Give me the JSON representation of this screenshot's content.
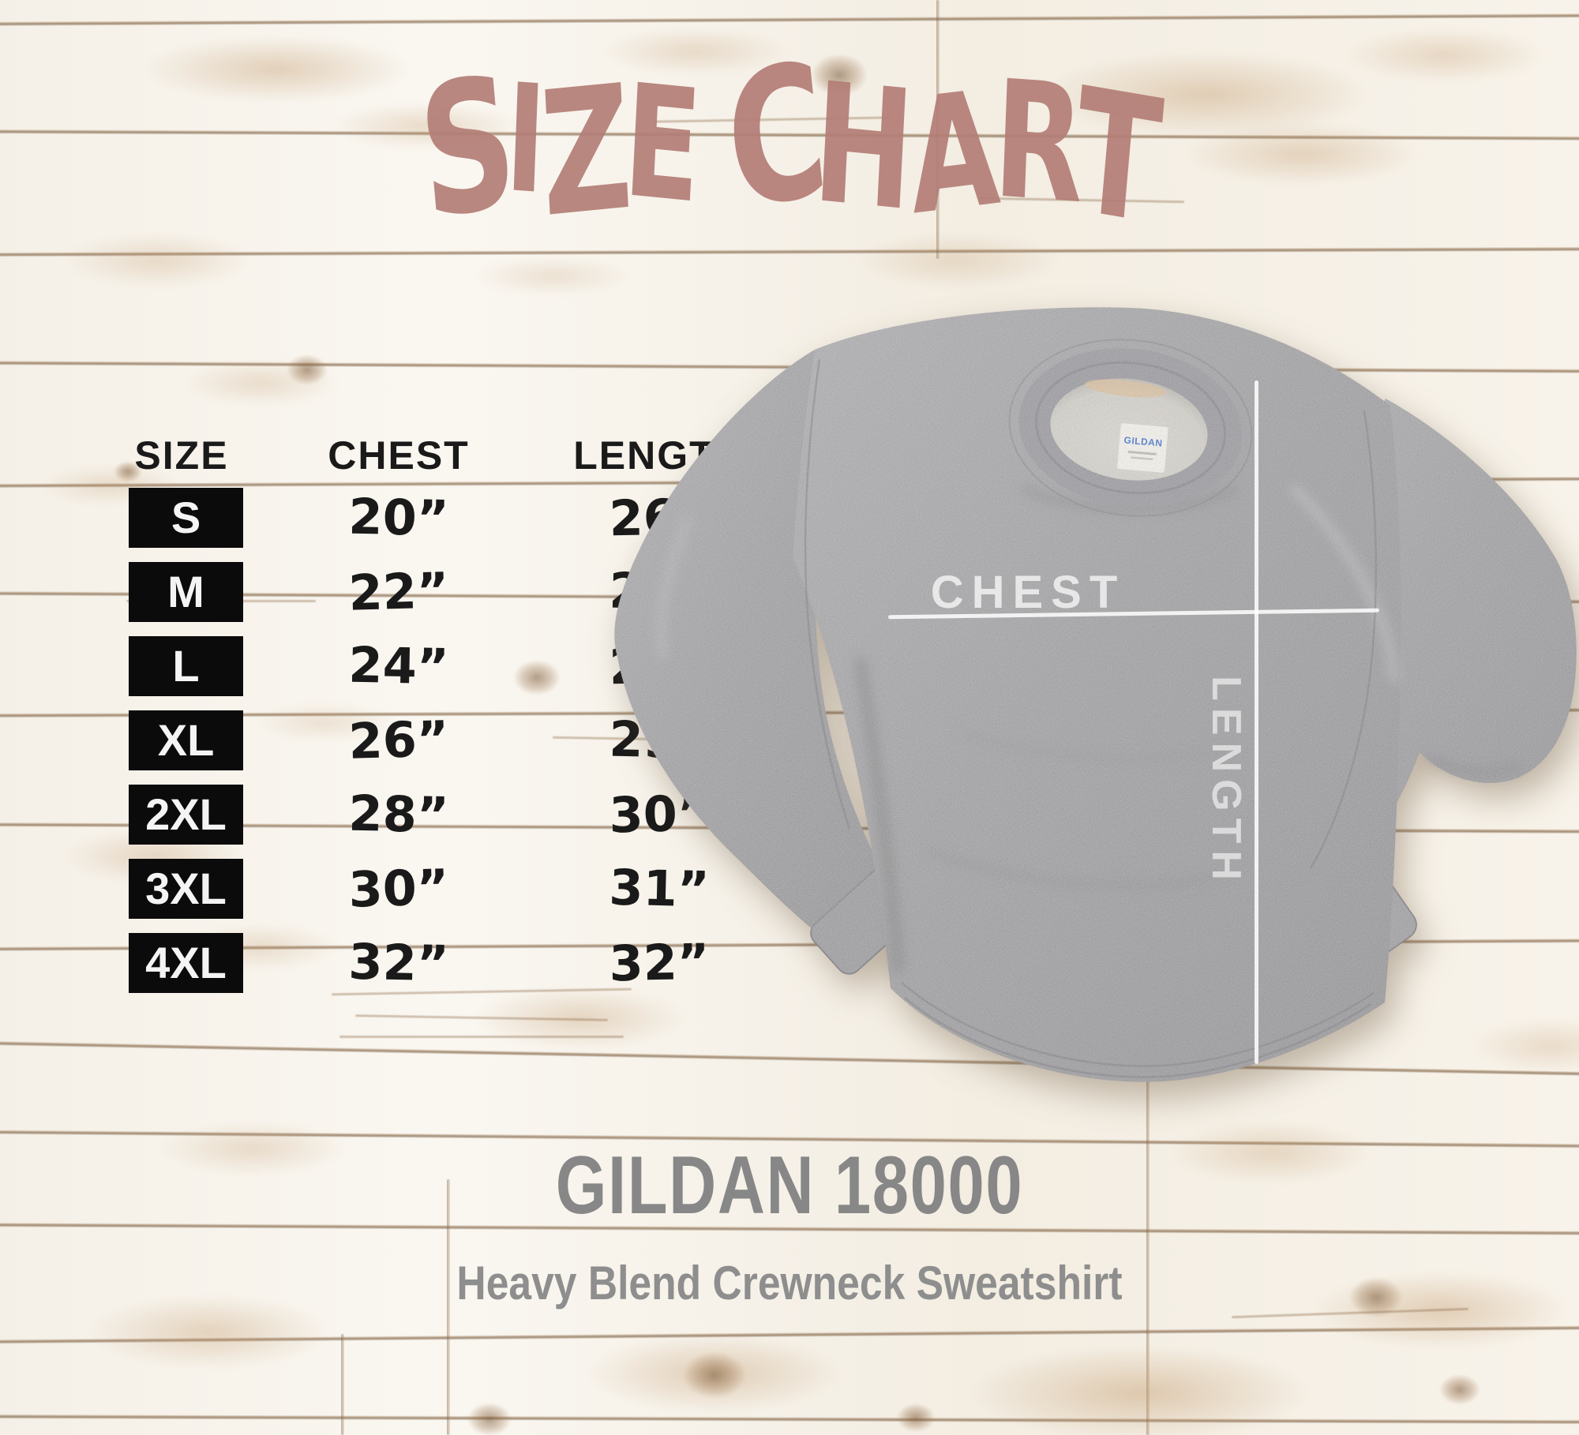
{
  "title": {
    "text": "SIZE CHART"
  },
  "chart_data": {
    "type": "table",
    "title": "SIZE CHART",
    "columns": [
      "SIZE",
      "CHEST",
      "LENGTH"
    ],
    "rows": [
      [
        "S",
        "20”",
        "26”"
      ],
      [
        "M",
        "22”",
        "27”"
      ],
      [
        "L",
        "24”",
        "28”"
      ],
      [
        "XL",
        "26”",
        "29”"
      ],
      [
        "2XL",
        "28”",
        "30”"
      ],
      [
        "3XL",
        "30”",
        "31”"
      ],
      [
        "4XL",
        "32”",
        "32”"
      ]
    ],
    "units": "inches",
    "layout": {
      "legend": "none",
      "grid": "off"
    }
  },
  "mockup": {
    "chest_label": "CHEST",
    "length_label": "LENGTH",
    "tag_brand": "GILDAN"
  },
  "product": {
    "name": "GILDAN 18000",
    "subtitle": "Heavy Blend Crewneck Sweatshirt"
  },
  "colors": {
    "title-rose": "#b37e77",
    "table-ink": "#1a1a1a",
    "size-box-bg": "#0b0b0b",
    "size-box-fg": "#f4f4f4",
    "product-gray": "#878787",
    "subtitle-gray": "#8e8e8e",
    "wood-line": "#8f6f4e",
    "wood-bg": "#f7f2ea",
    "heather-gray": "#9d9c9e",
    "measure-white": "#ffffff"
  }
}
